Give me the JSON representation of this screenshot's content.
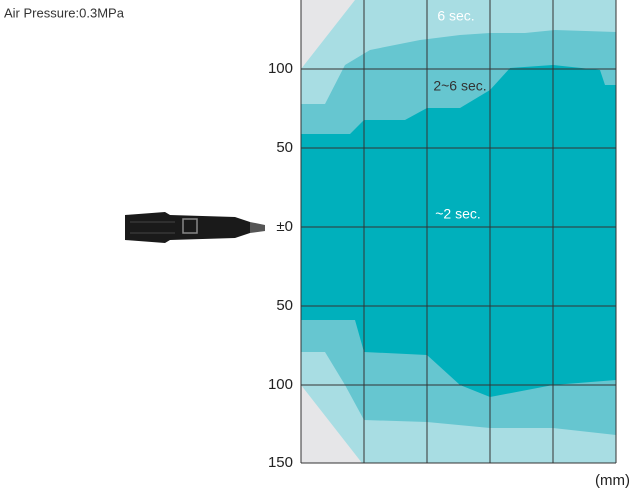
{
  "header": {
    "title": "Air Pressure:0.3MPa"
  },
  "axis": {
    "ticks": [
      "100",
      "50",
      "±0",
      "50",
      "100",
      "150"
    ],
    "unit": "(mm)"
  },
  "zones": [
    {
      "label": "6 sec."
    },
    {
      "label": "2~6 sec."
    },
    {
      "label": "~2 sec."
    }
  ]
}
